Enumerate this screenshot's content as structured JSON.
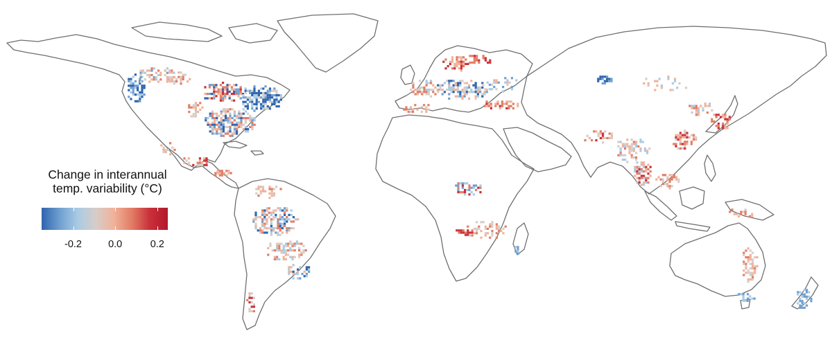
{
  "legend": {
    "title_line1": "Change in interannual",
    "title_line2": "temp. variability (°C)",
    "ticks": [
      "-0.2",
      "0.0",
      "0.2"
    ],
    "tick_values": [
      -0.2,
      0.0,
      0.2
    ],
    "range": [
      -0.35,
      0.25
    ],
    "colors": [
      "#2f64ad",
      "#6f9fd0",
      "#a9cbe4",
      "#d7cdc8",
      "#f0b29a",
      "#e27d66",
      "#c9303a",
      "#b2182b"
    ]
  },
  "map": {
    "projection": "equirectangular",
    "coastline_color": "#6e6e6e",
    "background": "#ffffff"
  }
}
